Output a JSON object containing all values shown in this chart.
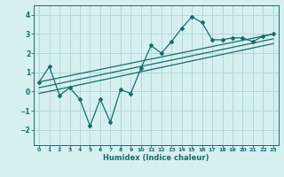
{
  "xlabel": "Humidex (Indice chaleur)",
  "ylabel": "",
  "bg_color": "#d6f0f0",
  "grid_color": "#b0d8d8",
  "line_color": "#1a6b6b",
  "main_x": [
    0,
    1,
    2,
    3,
    4,
    5,
    6,
    7,
    8,
    9,
    10,
    11,
    12,
    13,
    14,
    15,
    16,
    17,
    18,
    19,
    20,
    21,
    22,
    23
  ],
  "main_y": [
    0.5,
    1.3,
    -0.2,
    0.2,
    -0.4,
    -1.8,
    -0.4,
    -1.6,
    0.1,
    -0.1,
    1.2,
    2.4,
    2.0,
    2.6,
    3.3,
    3.9,
    3.6,
    2.7,
    2.7,
    2.8,
    2.8,
    2.6,
    2.9,
    3.0
  ],
  "line1_x": [
    0,
    23
  ],
  "line1_y": [
    0.5,
    3.0
  ],
  "line2_x": [
    0,
    23
  ],
  "line2_y": [
    0.2,
    2.75
  ],
  "line3_x": [
    0,
    23
  ],
  "line3_y": [
    -0.1,
    2.5
  ],
  "xlim": [
    -0.5,
    23.5
  ],
  "ylim": [
    -2.8,
    4.5
  ],
  "yticks": [
    -2,
    -1,
    0,
    1,
    2,
    3,
    4
  ],
  "xticks": [
    0,
    1,
    2,
    3,
    4,
    5,
    6,
    7,
    8,
    9,
    10,
    11,
    12,
    13,
    14,
    15,
    16,
    17,
    18,
    19,
    20,
    21,
    22,
    23
  ]
}
